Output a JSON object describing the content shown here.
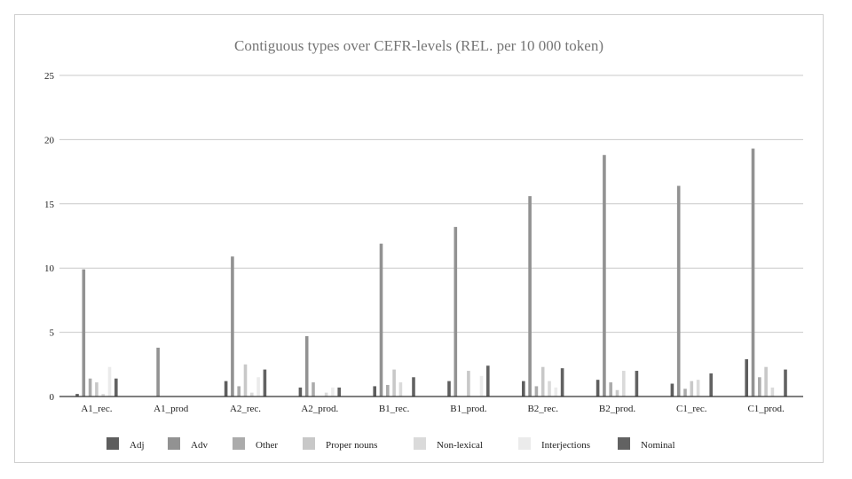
{
  "chart_data": {
    "type": "bar",
    "title": "Contiguous types over CEFR-levels (REL. per 10 000 token)",
    "xlabel": "",
    "ylabel": "",
    "ylim": [
      0,
      25
    ],
    "yticks": [
      0,
      5,
      10,
      15,
      20,
      25
    ],
    "grid": true,
    "legend_position": "bottom",
    "categories": [
      "A1_rec.",
      "A1_prod",
      "A2_rec.",
      "A2_prod.",
      "B1_rec.",
      "B1_prod.",
      "B2_rec.",
      "B2_prod.",
      "C1_rec.",
      "C1_prod."
    ],
    "series": [
      {
        "name": "Adj",
        "color": "#5e5e5e",
        "values": [
          0.2,
          0,
          1.2,
          0.7,
          0.8,
          1.2,
          1.2,
          1.3,
          1.0,
          2.9
        ]
      },
      {
        "name": "Adv",
        "color": "#929292",
        "values": [
          9.9,
          3.8,
          10.9,
          4.7,
          11.9,
          13.2,
          15.6,
          18.8,
          16.4,
          19.3
        ]
      },
      {
        "name": "Other",
        "color": "#ababab",
        "values": [
          1.4,
          0,
          0.8,
          1.1,
          0.9,
          0,
          0.8,
          1.1,
          0.6,
          1.5
        ]
      },
      {
        "name": "Proper nouns",
        "color": "#c8c8c8",
        "values": [
          1.1,
          0,
          2.5,
          0,
          2.1,
          2.0,
          2.3,
          0.5,
          1.2,
          2.3
        ]
      },
      {
        "name": "Non-lexical",
        "color": "#dadada",
        "values": [
          0.2,
          0,
          0.3,
          0.3,
          1.1,
          0,
          1.2,
          2.0,
          1.3,
          0.7
        ]
      },
      {
        "name": "Interjections",
        "color": "#ebebeb",
        "values": [
          2.3,
          0,
          1.5,
          0.7,
          0,
          1.6,
          0.7,
          0,
          0,
          0
        ]
      },
      {
        "name": "Nominal",
        "color": "#626262",
        "values": [
          1.4,
          0,
          2.1,
          0.7,
          1.5,
          2.4,
          2.2,
          2.0,
          1.8,
          2.1
        ]
      }
    ]
  }
}
